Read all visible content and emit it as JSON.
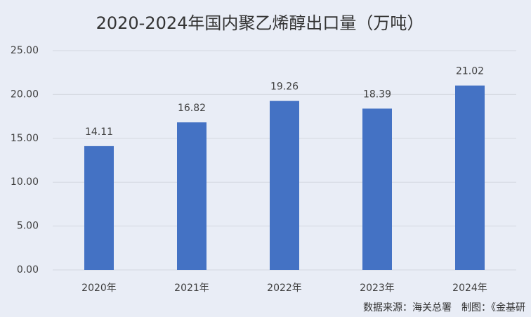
{
  "chart_data": {
    "type": "bar",
    "title": "2020-2024年国内聚乙烯醇出口量（万吨）",
    "categories": [
      "2020年",
      "2021年",
      "2022年",
      "2023年",
      "2024年"
    ],
    "values": [
      14.11,
      16.82,
      19.26,
      18.39,
      21.02
    ],
    "color": "#4472c4",
    "ylim": [
      0,
      25
    ],
    "yticks": [
      {
        "value": 0,
        "label": "0.00"
      },
      {
        "value": 5,
        "label": "5.00"
      },
      {
        "value": 10,
        "label": "10.00"
      },
      {
        "value": 15,
        "label": "15.00"
      },
      {
        "value": 20,
        "label": "20.00"
      },
      {
        "value": 25,
        "label": "25.00"
      }
    ],
    "grid": true,
    "source": "数据来源：海关总署　制图：《金基研"
  }
}
